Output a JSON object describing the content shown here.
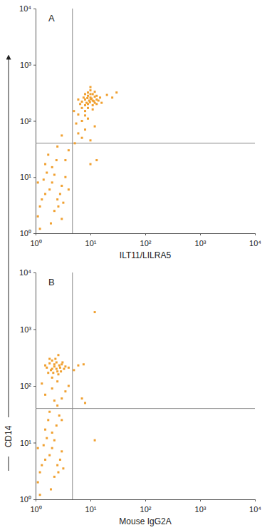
{
  "chart_data": [
    {
      "type": "scatter",
      "title": "A",
      "x_label": "ILT11/LILRA5",
      "y_label": "CD14",
      "log": true,
      "color": "#f0a030",
      "marker": "square",
      "gates": {
        "x": 4.7,
        "y": 40
      },
      "xlim": [
        1,
        10000
      ],
      "ylim": [
        1,
        10000
      ],
      "xticks": [
        {
          "value": 1,
          "label": "10⁰"
        },
        {
          "value": 10,
          "label": "10¹"
        },
        {
          "value": 100,
          "label": "10²"
        },
        {
          "value": 1000,
          "label": "10³"
        },
        {
          "value": 10000,
          "label": "10⁴"
        }
      ],
      "yticks": [
        {
          "value": 1,
          "label": "10⁰"
        },
        {
          "value": 10,
          "label": "10¹"
        },
        {
          "value": 100,
          "label": "10²"
        },
        {
          "value": 1000,
          "label": "10³"
        },
        {
          "value": 10000,
          "label": "10⁴"
        }
      ],
      "x": [
        7,
        8,
        9,
        10,
        11,
        12,
        8,
        9,
        10,
        11,
        7.5,
        9.5,
        10.5,
        12,
        13,
        8.5,
        9,
        11,
        10,
        13,
        14,
        6.5,
        7,
        8,
        12,
        15,
        9,
        10,
        11,
        8,
        20,
        30,
        25,
        6,
        13,
        16,
        9.8,
        10.2,
        11.5,
        8.8,
        6,
        7,
        5.5,
        8,
        9,
        6,
        7,
        10,
        8,
        5,
        12,
        13,
        10,
        5.2,
        4,
        3,
        2.5,
        3.5,
        1.5,
        2,
        2.5,
        1.2,
        1.8,
        3,
        2.2,
        1.4,
        2.8,
        1.1,
        3.5,
        1.6,
        2,
        1.3,
        2.6,
        1.9,
        1.2,
        3.2,
        4,
        2.4,
        1.7,
        1.1,
        3,
        2.2,
        1.5
      ],
      "values": [
        220,
        240,
        200,
        260,
        230,
        210,
        190,
        280,
        300,
        190,
        260,
        230,
        250,
        270,
        240,
        210,
        170,
        300,
        350,
        200,
        230,
        200,
        170,
        300,
        330,
        260,
        320,
        400,
        160,
        150,
        290,
        320,
        260,
        240,
        280,
        210,
        215,
        245,
        225,
        255,
        130,
        100,
        90,
        70,
        110,
        60,
        50,
        45,
        125,
        150,
        80,
        20,
        17,
        40,
        30,
        55,
        35,
        20,
        5,
        8,
        4,
        3,
        6,
        7,
        2.5,
        9,
        5,
        2,
        10,
        12,
        15,
        4,
        3,
        1.5,
        1.2,
        3.5,
        6,
        20,
        25,
        8,
        1.8,
        11,
        17
      ]
    },
    {
      "type": "scatter",
      "title": "B",
      "x_label": "Mouse IgG2A",
      "log": true,
      "color": "#f0a030",
      "marker": "square",
      "gates": {
        "x": 4.7,
        "y": 40
      },
      "xlim": [
        1,
        10000
      ],
      "ylim": [
        1,
        10000
      ],
      "xticks": [
        {
          "value": 1,
          "label": "10⁰"
        },
        {
          "value": 10,
          "label": "10¹"
        },
        {
          "value": 100,
          "label": "10²"
        },
        {
          "value": 1000,
          "label": "10³"
        },
        {
          "value": 10000,
          "label": "10⁴"
        }
      ],
      "yticks": [
        {
          "value": 1,
          "label": "10⁰"
        },
        {
          "value": 10,
          "label": "10¹"
        },
        {
          "value": 100,
          "label": "10²"
        },
        {
          "value": 1000,
          "label": "10³"
        },
        {
          "value": 10000,
          "label": "10⁴"
        }
      ],
      "x": [
        2,
        2.2,
        2.5,
        1.8,
        2.8,
        3,
        2.1,
        1.6,
        2.4,
        2.7,
        3.3,
        1.9,
        2.3,
        2.6,
        1.5,
        3.5,
        2,
        2.9,
        1.7,
        2.4,
        2.2,
        3.1,
        1.8,
        4,
        5,
        6,
        7.5,
        2.6,
        12,
        2,
        2.5,
        2,
        1.5,
        3,
        2.5,
        1.8,
        3.5,
        7,
        8,
        4,
        1.3,
        2.2,
        12,
        1.5,
        2,
        2.5,
        1.2,
        1.8,
        3,
        2.2,
        1.4,
        2.8,
        1.1,
        1.6,
        2,
        1.3,
        2.6,
        1.9,
        1.2,
        3.2,
        2.4,
        1.7,
        1.1,
        2.2,
        1.5,
        3,
        2.7
      ],
      "values": [
        200,
        220,
        180,
        250,
        210,
        240,
        170,
        210,
        260,
        230,
        200,
        190,
        300,
        160,
        230,
        220,
        280,
        180,
        170,
        200,
        240,
        260,
        300,
        210,
        190,
        230,
        240,
        350,
        2000,
        140,
        120,
        90,
        70,
        60,
        45,
        35,
        80,
        60,
        50,
        100,
        110,
        55,
        11,
        5,
        8,
        4,
        3,
        6,
        7,
        2.5,
        9,
        5,
        2,
        12,
        15,
        4,
        3,
        1.5,
        1.2,
        3.5,
        20,
        25,
        8,
        11,
        17,
        25,
        30
      ]
    }
  ]
}
